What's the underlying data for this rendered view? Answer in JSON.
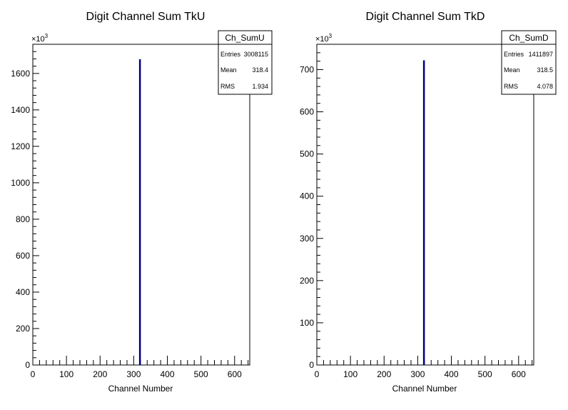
{
  "panels": [
    {
      "title": "Digit Channel Sum TkU",
      "xlabel": "Channel Number",
      "exponent_label": "×10",
      "exponent_power": "3",
      "stats": {
        "name": "Ch_SumU",
        "rows": [
          {
            "label": "Entries",
            "value": "3008115"
          },
          {
            "label": "Mean",
            "value": "318.4"
          },
          {
            "label": "RMS",
            "value": "1.934"
          }
        ]
      }
    },
    {
      "title": "Digit Channel Sum TkD",
      "xlabel": "Channel Number",
      "exponent_label": "×10",
      "exponent_power": "3",
      "stats": {
        "name": "Ch_SumD",
        "rows": [
          {
            "label": "Entries",
            "value": "1411897"
          },
          {
            "label": "Mean",
            "value": "318.5"
          },
          {
            "label": "RMS",
            "value": "4.078"
          }
        ]
      }
    }
  ],
  "chart_data": [
    {
      "type": "bar",
      "title": "Digit Channel Sum TkU",
      "xlabel": "Channel Number",
      "ylabel": "",
      "xlim": [
        0,
        645
      ],
      "ylim": [
        0,
        1760
      ],
      "y_multiplier": 1000,
      "x_ticks": [
        0,
        100,
        200,
        300,
        400,
        500,
        600
      ],
      "y_ticks": [
        0,
        200,
        400,
        600,
        800,
        1000,
        1200,
        1400,
        1600
      ],
      "bins": [
        {
          "x": 318,
          "value": 1678
        }
      ],
      "line_color": "#000080",
      "grid": false,
      "legend": "top-right"
    },
    {
      "type": "bar",
      "title": "Digit Channel Sum TkD",
      "xlabel": "Channel Number",
      "ylabel": "",
      "xlim": [
        0,
        645
      ],
      "ylim": [
        0,
        760
      ],
      "y_multiplier": 1000,
      "x_ticks": [
        0,
        100,
        200,
        300,
        400,
        500,
        600
      ],
      "y_ticks": [
        0,
        100,
        200,
        300,
        400,
        500,
        600,
        700
      ],
      "bins": [
        {
          "x": 318,
          "value": 722
        }
      ],
      "line_color": "#000080",
      "grid": false,
      "legend": "top-right"
    }
  ]
}
